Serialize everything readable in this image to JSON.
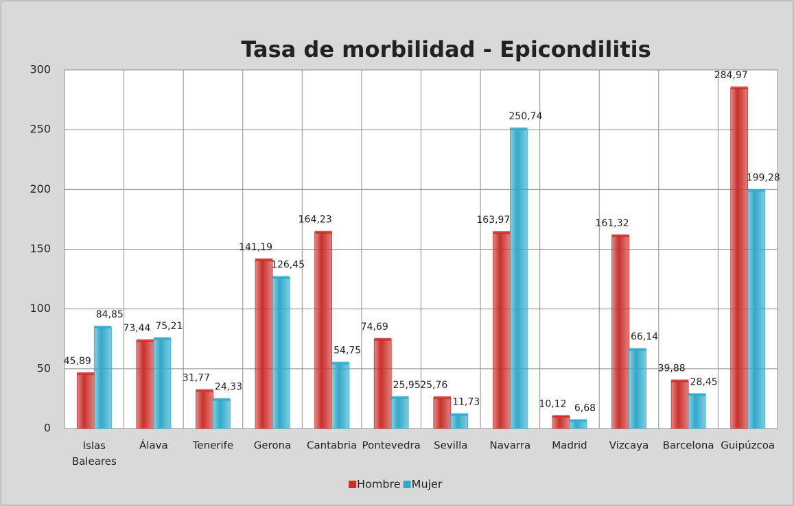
{
  "chart_data": {
    "type": "bar",
    "title": "Tasa de morbilidad - Epicondilitis",
    "categories": [
      "Islas Baleares",
      "Álava",
      "Tenerife",
      "Gerona",
      "Cantabria",
      "Pontevedra",
      "Sevilla",
      "Navarra",
      "Madrid",
      "Vizcaya",
      "Barcelona",
      "Guipúzcoa"
    ],
    "series": [
      {
        "name": "Hombre",
        "color": "#c9302c",
        "label_color": "#c00000",
        "values": [
          45.89,
          73.44,
          31.77,
          141.19,
          164.23,
          74.69,
          25.76,
          163.97,
          10.12,
          161.32,
          39.88,
          284.97
        ],
        "value_labels": [
          "45,89",
          "73,44",
          "31,77",
          "141,19",
          "164,23",
          "74,69",
          "25,76",
          "163,97",
          "10,12",
          "161,32",
          "39,88",
          "284,97"
        ]
      },
      {
        "name": "Mujer",
        "color": "#31a9c9",
        "label_color": "#1f3864",
        "values": [
          84.85,
          75.21,
          24.33,
          126.45,
          54.75,
          25.95,
          11.73,
          250.74,
          6.68,
          66.14,
          28.45,
          199.28
        ],
        "value_labels": [
          "84,85",
          "75,21",
          "24,33",
          "126,45",
          "54,75",
          "25,95",
          "11,73",
          "250,74",
          "6,68",
          "66,14",
          "28,45",
          "199,28"
        ]
      }
    ],
    "ylim": [
      0,
      300
    ],
    "yticks": [
      0,
      50,
      100,
      150,
      200,
      250,
      300
    ],
    "grid": true,
    "legend": "bottom"
  }
}
